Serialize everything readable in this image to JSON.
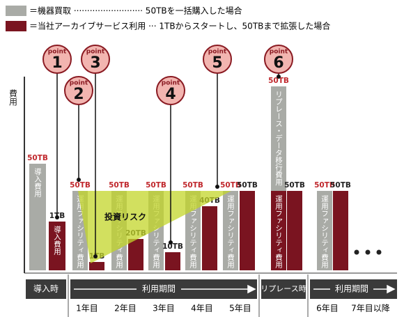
{
  "chart_data": {
    "type": "bar",
    "legend": [
      {
        "name": "＝機器買取 ·························· 50TBを一括購入した場合",
        "color": "#a9aba6",
        "label_color": "#c0282d"
      },
      {
        "name": "＝当社アーカイブサービス利用 ··· 1TBからスタートし、50TBまで拡張した場合",
        "color": "#7a1420",
        "label_color": "#222222"
      }
    ],
    "y_label": "費用",
    "ylim": [
      0,
      270
    ],
    "bars": [
      {
        "label": "50TB",
        "segments": [
          {
            "series": 0,
            "value": 153,
            "text": "導入費用"
          }
        ]
      },
      {
        "label": "1TB",
        "segments": [
          {
            "series": 1,
            "value": 70,
            "text": "導入費用"
          }
        ]
      },
      {
        "label": "50TB",
        "segments": [
          {
            "series": 0,
            "value": 114,
            "text": "運用ファシリティ費用"
          }
        ]
      },
      {
        "label": "1TB",
        "segments": [
          {
            "series": 1,
            "value": 12
          }
        ]
      },
      {
        "label": "50TB",
        "segments": [
          {
            "series": 0,
            "value": 114,
            "text": "運用ファシリティ費用"
          }
        ]
      },
      {
        "label": "20TB",
        "segments": [
          {
            "series": 1,
            "value": 45
          }
        ]
      },
      {
        "label": "50TB",
        "segments": [
          {
            "series": 0,
            "value": 114,
            "text": "運用ファシリティ費用"
          }
        ]
      },
      {
        "label": "10TB",
        "segments": [
          {
            "series": 1,
            "value": 26
          }
        ]
      },
      {
        "label": "50TB",
        "segments": [
          {
            "series": 0,
            "value": 114,
            "text": "運用ファシリティ費用"
          }
        ]
      },
      {
        "label": "40TB",
        "segments": [
          {
            "series": 1,
            "value": 92
          }
        ]
      },
      {
        "label": "50TB",
        "segments": [
          {
            "series": 0,
            "value": 114,
            "text": "運用ファシリティ費用"
          }
        ]
      },
      {
        "label": "50TB",
        "segments": [
          {
            "series": 1,
            "value": 114
          }
        ]
      },
      {
        "label": "50TB",
        "segments": [
          {
            "series": 1,
            "value": 114,
            "text": "運用ファシリティ費用"
          },
          {
            "series": 0,
            "value": 150,
            "text": "リプレース・データ移行費用"
          }
        ]
      },
      {
        "label": "50TB",
        "segments": [
          {
            "series": 1,
            "value": 114
          }
        ]
      },
      {
        "label": "50TB",
        "segments": [
          {
            "series": 0,
            "value": 114,
            "text": "運用ファシリティ費用"
          }
        ]
      },
      {
        "label": "50TB",
        "segments": [
          {
            "series": 1,
            "value": 114
          }
        ]
      }
    ],
    "risk_label": "投資リスク",
    "points": [
      {
        "word": "point",
        "number": "1"
      },
      {
        "word": "point",
        "number": "2"
      },
      {
        "word": "point",
        "number": "3"
      },
      {
        "word": "point",
        "number": "4"
      },
      {
        "word": "point",
        "number": "5"
      },
      {
        "word": "point",
        "number": "6"
      }
    ],
    "phases": [
      "導入時",
      "利用期間",
      "リプレース時",
      "利用期間"
    ],
    "categories": [
      "1年目",
      "2年目",
      "3年目",
      "4年目",
      "5年目",
      "6年目",
      "7年目以降"
    ]
  }
}
